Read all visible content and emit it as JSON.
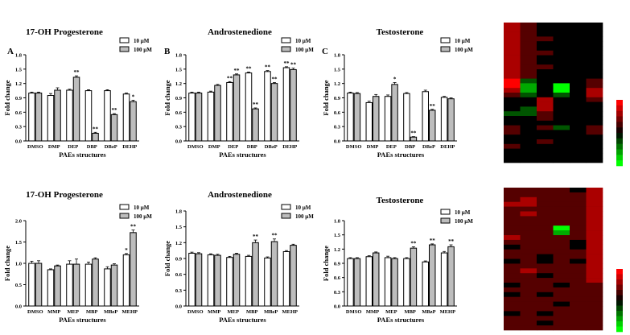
{
  "chart_data": [
    {
      "panel_label": "A",
      "type": "bar",
      "title": "17-OH Progesterone",
      "xlabel": "PAEs structures",
      "ylabel": "Fold change",
      "ylim": [
        0,
        1.8
      ],
      "yticks": [
        "0.0",
        "0.3",
        "0.6",
        "0.9",
        "1.2",
        "1.5",
        "1.8"
      ],
      "categories": [
        "DMSO",
        "DMP",
        "DEP",
        "DBP",
        "DBzP",
        "DEHP"
      ],
      "series": [
        {
          "name": "10 µM",
          "values": [
            1.0,
            0.95,
            1.06,
            1.05,
            1.05,
            0.98
          ],
          "errors": [
            0.02,
            0.04,
            0.02,
            0.02,
            0.02,
            0.02
          ]
        },
        {
          "name": "100 µM",
          "values": [
            1.0,
            1.06,
            1.33,
            0.16,
            0.55,
            0.82
          ],
          "errors": [
            0.02,
            0.05,
            0.03,
            0.02,
            0.02,
            0.03
          ]
        }
      ],
      "significance": [
        {
          "category": "DEP",
          "series": "100 µM",
          "label": "**"
        },
        {
          "category": "DBP",
          "series": "100 µM",
          "label": "**"
        },
        {
          "category": "DBzP",
          "series": "100 µM",
          "label": "**"
        },
        {
          "category": "DEHP",
          "series": "100 µM",
          "label": "*"
        }
      ],
      "legend_position": "top-right"
    },
    {
      "panel_label": "B",
      "type": "bar",
      "title": "Androstenedione",
      "xlabel": "PAEs structures",
      "ylabel": "Fold change",
      "ylim": [
        0,
        1.8
      ],
      "yticks": [
        "0.0",
        "0.3",
        "0.6",
        "0.9",
        "1.2",
        "1.5",
        "1.8"
      ],
      "categories": [
        "DMSO",
        "DMP",
        "DEP",
        "DBP",
        "DBzP",
        "DEHP"
      ],
      "series": [
        {
          "name": "10 µM",
          "values": [
            1.0,
            1.02,
            1.22,
            1.42,
            1.45,
            1.53
          ],
          "errors": [
            0.02,
            0.02,
            0.02,
            0.02,
            0.02,
            0.02
          ]
        },
        {
          "name": "100 µM",
          "values": [
            1.0,
            1.16,
            1.38,
            0.67,
            1.2,
            1.49
          ],
          "errors": [
            0.02,
            0.02,
            0.02,
            0.02,
            0.02,
            0.03
          ]
        }
      ],
      "significance": [
        {
          "category": "DEP",
          "series": "10 µM",
          "label": "**"
        },
        {
          "category": "DEP",
          "series": "100 µM",
          "label": "**"
        },
        {
          "category": "DBP",
          "series": "10 µM",
          "label": "**"
        },
        {
          "category": "DBP",
          "series": "100 µM",
          "label": "**"
        },
        {
          "category": "DBzP",
          "series": "10 µM",
          "label": "**"
        },
        {
          "category": "DBzP",
          "series": "100 µM",
          "label": "**"
        },
        {
          "category": "DEHP",
          "series": "10 µM",
          "label": "**"
        },
        {
          "category": "DEHP",
          "series": "100 µM",
          "label": "**"
        }
      ],
      "legend_position": "top-right"
    },
    {
      "panel_label": "C",
      "type": "bar",
      "title": "Testosterone",
      "xlabel": "PAEs structures",
      "ylabel": "Fold change",
      "ylim": [
        0,
        1.8
      ],
      "yticks": [
        "0.0",
        "0.3",
        "0.6",
        "0.9",
        "1.2",
        "1.5",
        "1.8"
      ],
      "categories": [
        "DMSO",
        "DMP",
        "DEP",
        "DBP",
        "DBzP",
        "DEHP"
      ],
      "series": [
        {
          "name": "10 µM",
          "values": [
            1.0,
            0.8,
            0.93,
            0.99,
            1.03,
            0.91
          ],
          "errors": [
            0.02,
            0.03,
            0.03,
            0.02,
            0.03,
            0.02
          ]
        },
        {
          "name": "100 µM",
          "values": [
            0.99,
            0.93,
            1.18,
            0.08,
            0.64,
            0.88
          ],
          "errors": [
            0.02,
            0.04,
            0.04,
            0.01,
            0.02,
            0.02
          ]
        }
      ],
      "significance": [
        {
          "category": "DEP",
          "series": "100 µM",
          "label": "*"
        },
        {
          "category": "DBP",
          "series": "100 µM",
          "label": "**"
        },
        {
          "category": "DBzP",
          "series": "100 µM",
          "label": "**"
        }
      ],
      "legend_position": "top-right"
    },
    {
      "panel_label": "",
      "type": "bar",
      "title": "17-OH Progesterone",
      "xlabel": "PAEs structures",
      "ylabel": "Fold change",
      "ylim": [
        0,
        2.0
      ],
      "yticks": [
        "0.0",
        "0.5",
        "1.0",
        "1.5",
        "2.0"
      ],
      "categories": [
        "DMSO",
        "MMP",
        "MEP",
        "MBP",
        "MBzP",
        "MEHP"
      ],
      "series": [
        {
          "name": "10 µM",
          "values": [
            1.0,
            0.85,
            0.98,
            0.98,
            0.87,
            1.2
          ],
          "errors": [
            0.05,
            0.02,
            0.08,
            0.05,
            0.05,
            0.03
          ]
        },
        {
          "name": "100 µM",
          "values": [
            1.0,
            0.94,
            0.98,
            1.1,
            0.96,
            1.72
          ],
          "errors": [
            0.06,
            0.02,
            0.12,
            0.03,
            0.03,
            0.06
          ]
        }
      ],
      "significance": [
        {
          "category": "MEHP",
          "series": "10 µM",
          "label": "*"
        },
        {
          "category": "MEHP",
          "series": "100 µM",
          "label": "**"
        }
      ],
      "legend_position": "top-right"
    },
    {
      "panel_label": "",
      "type": "bar",
      "title": "Androstenedione",
      "xlabel": "PAEs structures",
      "ylabel": "Fold change",
      "ylim": [
        0,
        1.8
      ],
      "yticks": [
        "0.0",
        "0.3",
        "0.6",
        "0.9",
        "1.2",
        "1.5",
        "1.8"
      ],
      "categories": [
        "DMSO",
        "MMP",
        "MEP",
        "MBP",
        "MBzP",
        "MEHP"
      ],
      "series": [
        {
          "name": "10 µM",
          "values": [
            1.0,
            0.97,
            0.92,
            0.94,
            0.91,
            1.03
          ],
          "errors": [
            0.02,
            0.02,
            0.02,
            0.02,
            0.02,
            0.02
          ]
        },
        {
          "name": "100 µM",
          "values": [
            0.99,
            0.96,
            0.98,
            1.2,
            1.22,
            1.15
          ],
          "errors": [
            0.02,
            0.02,
            0.02,
            0.05,
            0.05,
            0.02
          ]
        }
      ],
      "significance": [
        {
          "category": "MBP",
          "series": "100 µM",
          "label": "**"
        },
        {
          "category": "MBzP",
          "series": "100 µM",
          "label": "**"
        }
      ],
      "legend_position": "top-right"
    },
    {
      "panel_label": "",
      "type": "bar",
      "title": "Testosterone",
      "xlabel": "PAEs structures",
      "ylabel": "Fold change",
      "ylim": [
        0,
        1.8
      ],
      "yticks": [
        "0.0",
        "0.3",
        "0.6",
        "0.9",
        "1.2",
        "1.5",
        "1.8"
      ],
      "categories": [
        "DMSO",
        "MMP",
        "MEP",
        "MBP",
        "MBzP",
        "MEHP"
      ],
      "series": [
        {
          "name": "10 µM",
          "values": [
            1.0,
            1.04,
            1.02,
            1.0,
            0.93,
            1.12
          ],
          "errors": [
            0.02,
            0.02,
            0.03,
            0.02,
            0.02,
            0.03
          ]
        },
        {
          "name": "100 µM",
          "values": [
            1.0,
            1.12,
            1.0,
            1.22,
            1.29,
            1.25
          ],
          "errors": [
            0.02,
            0.02,
            0.02,
            0.03,
            0.02,
            0.04
          ]
        }
      ],
      "significance": [
        {
          "category": "MBP",
          "series": "100 µM",
          "label": "**"
        },
        {
          "category": "MBzP",
          "series": "100 µM",
          "label": "**"
        },
        {
          "category": "MEHP",
          "series": "100 µM",
          "label": "**"
        }
      ],
      "legend_position": "top-right"
    },
    {
      "type": "heatmap",
      "rows": 30,
      "columns": 6,
      "colormap": [
        "#00ff00",
        "#000000",
        "#ff0000"
      ],
      "legend_position": "right",
      "values": [
        [
          2,
          1,
          0,
          0,
          0,
          0
        ],
        [
          2,
          1,
          0,
          0,
          0,
          0
        ],
        [
          2,
          1,
          0,
          0,
          0,
          0
        ],
        [
          2,
          1,
          1,
          0,
          0,
          0
        ],
        [
          2,
          1,
          0,
          0,
          0,
          0
        ],
        [
          2,
          1,
          0,
          0,
          0,
          0
        ],
        [
          2,
          1,
          1,
          0,
          0,
          0
        ],
        [
          2,
          1,
          0,
          0,
          0,
          0
        ],
        [
          2,
          1,
          0,
          0,
          0,
          0
        ],
        [
          2,
          1,
          1,
          0,
          0,
          0
        ],
        [
          2,
          1,
          0,
          0,
          0,
          0
        ],
        [
          2,
          1,
          0,
          0,
          0,
          0
        ],
        [
          3,
          -1,
          0,
          0,
          0,
          1
        ],
        [
          3,
          -2,
          0,
          -3,
          0,
          1
        ],
        [
          2,
          -2,
          0,
          -3,
          0,
          2
        ],
        [
          1,
          -1,
          0,
          -1,
          0,
          2
        ],
        [
          0,
          0,
          2,
          0,
          0,
          1
        ],
        [
          0,
          0,
          2,
          0,
          0,
          0
        ],
        [
          0,
          -1,
          2,
          0,
          0,
          0
        ],
        [
          -1,
          -1,
          1,
          0,
          0,
          0
        ],
        [
          0,
          0,
          1,
          0,
          0,
          0
        ],
        [
          0,
          0,
          0,
          0,
          0,
          0
        ],
        [
          1,
          0,
          1,
          -1,
          0,
          1
        ],
        [
          1,
          0,
          0,
          0,
          0,
          1
        ],
        [
          0,
          0,
          0,
          0,
          0,
          0
        ],
        [
          0,
          0,
          1,
          0,
          0,
          0
        ],
        [
          1,
          0,
          0,
          0,
          0,
          0
        ],
        [
          0,
          0,
          0,
          0,
          0,
          0
        ],
        [
          0,
          0,
          0,
          0,
          0,
          0
        ],
        [
          0,
          0,
          0,
          0,
          0,
          0
        ]
      ]
    },
    {
      "type": "heatmap",
      "rows": 30,
      "columns": 6,
      "colormap": [
        "#00ff00",
        "#000000",
        "#ff0000"
      ],
      "legend_position": "right",
      "values": [
        [
          1,
          1,
          1,
          1,
          0,
          2
        ],
        [
          1,
          1,
          1,
          1,
          1,
          2
        ],
        [
          1,
          2,
          1,
          1,
          1,
          2
        ],
        [
          2,
          2,
          1,
          1,
          1,
          2
        ],
        [
          1,
          1,
          1,
          1,
          1,
          2
        ],
        [
          1,
          2,
          1,
          1,
          1,
          2
        ],
        [
          1,
          1,
          1,
          1,
          1,
          2
        ],
        [
          1,
          1,
          1,
          1,
          1,
          2
        ],
        [
          1,
          1,
          1,
          -3,
          1,
          2
        ],
        [
          1,
          1,
          1,
          -2,
          1,
          2
        ],
        [
          2,
          1,
          1,
          1,
          1,
          2
        ],
        [
          1,
          1,
          1,
          1,
          0,
          2
        ],
        [
          0,
          1,
          1,
          1,
          0,
          2
        ],
        [
          1,
          1,
          1,
          1,
          1,
          2
        ],
        [
          1,
          1,
          0,
          1,
          1,
          2
        ],
        [
          0,
          1,
          0,
          1,
          0,
          2
        ],
        [
          1,
          1,
          1,
          1,
          1,
          2
        ],
        [
          1,
          2,
          1,
          1,
          1,
          2
        ],
        [
          1,
          1,
          0,
          1,
          1,
          2
        ],
        [
          1,
          1,
          1,
          1,
          1,
          2
        ],
        [
          0,
          1,
          1,
          0,
          1,
          1
        ],
        [
          1,
          1,
          1,
          1,
          1,
          1
        ],
        [
          0,
          1,
          0,
          1,
          1,
          1
        ],
        [
          1,
          1,
          1,
          1,
          1,
          1
        ],
        [
          1,
          1,
          1,
          0,
          1,
          1
        ],
        [
          1,
          1,
          1,
          1,
          1,
          1
        ],
        [
          0,
          1,
          0,
          1,
          1,
          1
        ],
        [
          1,
          1,
          1,
          1,
          1,
          1
        ],
        [
          1,
          1,
          0,
          1,
          1,
          1
        ],
        [
          1,
          1,
          1,
          1,
          1,
          1
        ]
      ]
    }
  ],
  "styles": {
    "series_fills": [
      "#ffffff",
      "#bdbdbd"
    ],
    "heat_low": "#00ff00",
    "heat_mid": "#000000",
    "heat_high": "#ff0000"
  }
}
